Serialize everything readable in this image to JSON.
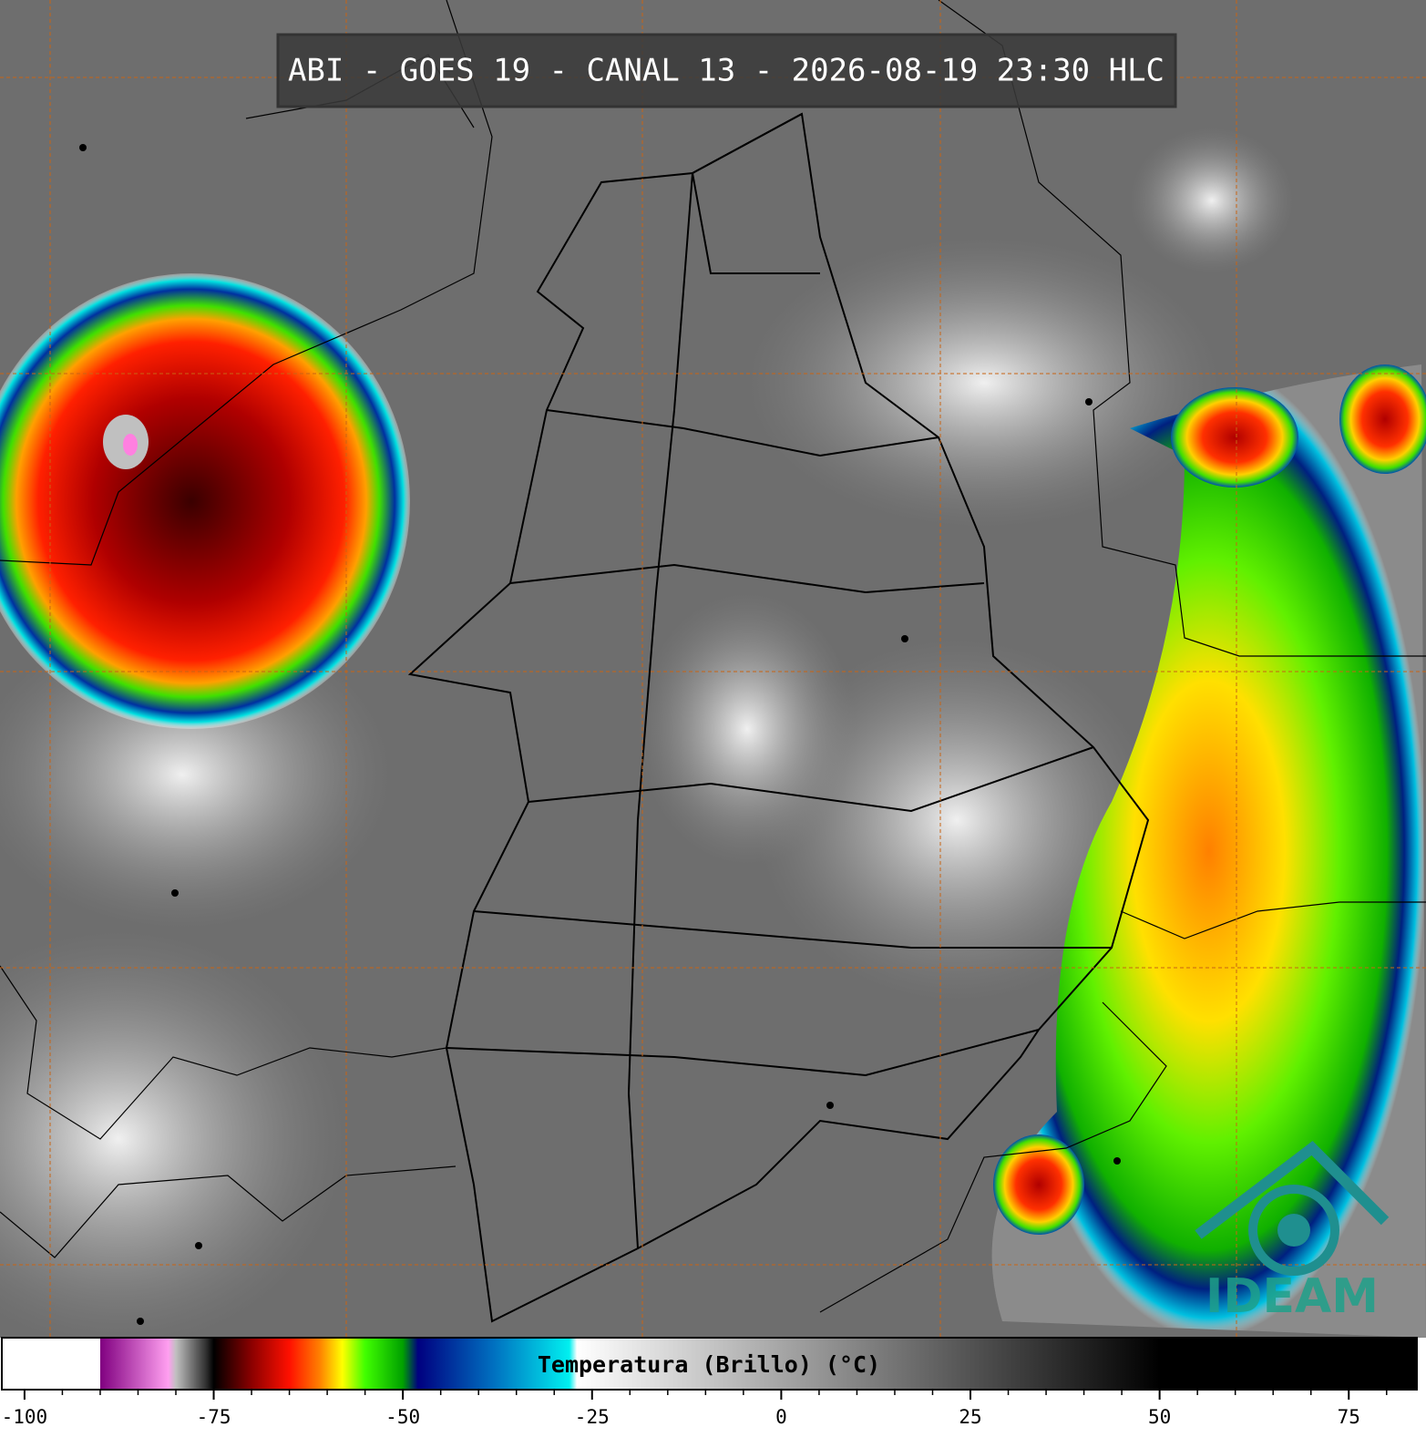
{
  "title": "ABI - GOES 19 - CANAL 13 - 2026-08-19 23:30 HLC",
  "logo": "IDEAM",
  "colorbar": {
    "label": "Temperatura (Brillo) (°C)",
    "lim": [
      -103,
      84
    ],
    "ticks": [
      -100,
      -75,
      -50,
      -25,
      0,
      25,
      50,
      75
    ],
    "minor_ticks": [
      -95,
      -90,
      -85,
      -80,
      -70,
      -65,
      -60,
      -55,
      -45,
      -40,
      -35,
      -30,
      -20,
      -15,
      -10,
      -5,
      5,
      10,
      15,
      20,
      30,
      35,
      40,
      45,
      55,
      60,
      65,
      70,
      80
    ],
    "stops": [
      {
        "value": -103,
        "color": "#ffffff"
      },
      {
        "value": -90,
        "color": "#ffffff"
      },
      {
        "value": -90,
        "color": "#800080"
      },
      {
        "value": -81,
        "color": "#ff9ff0"
      },
      {
        "value": -80,
        "color": "#c0c0c0"
      },
      {
        "value": -76,
        "color": "#303030"
      },
      {
        "value": -75,
        "color": "#000000"
      },
      {
        "value": -70,
        "color": "#8b0000"
      },
      {
        "value": -65,
        "color": "#ff1000"
      },
      {
        "value": -61,
        "color": "#ff8000"
      },
      {
        "value": -58,
        "color": "#ffff00"
      },
      {
        "value": -55,
        "color": "#40ff00"
      },
      {
        "value": -50,
        "color": "#00a000"
      },
      {
        "value": -48,
        "color": "#000080"
      },
      {
        "value": -38,
        "color": "#0070c0"
      },
      {
        "value": -28,
        "color": "#00f0f0"
      },
      {
        "value": -27,
        "color": "#ffffff"
      },
      {
        "value": 50,
        "color": "#000000"
      },
      {
        "value": 84,
        "color": "#000000"
      }
    ]
  }
}
